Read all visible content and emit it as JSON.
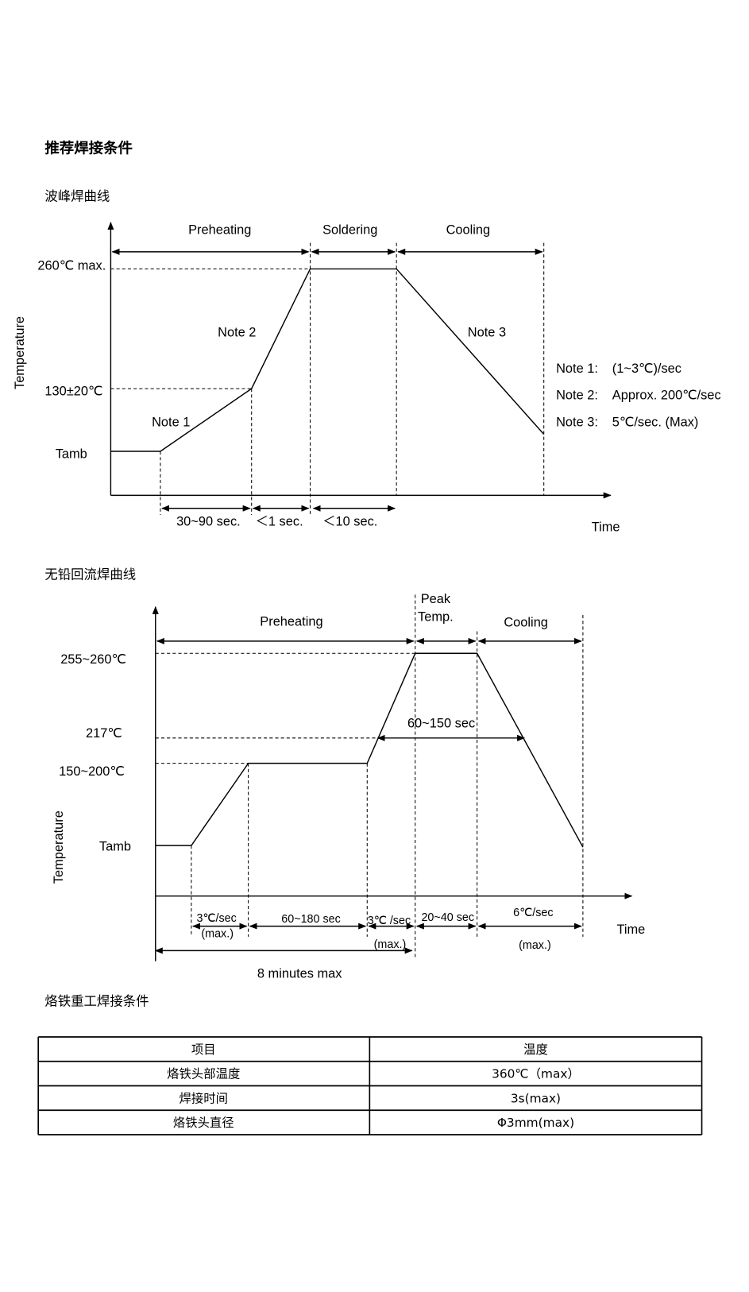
{
  "title": "推荐焊接条件",
  "wave": {
    "heading": "波峰焊曲线",
    "phases": [
      "Preheating",
      "Soldering",
      "Cooling"
    ],
    "y_labels": [
      "260℃ max.",
      "130±20℃",
      "Tamb"
    ],
    "y_axis": "Temperature",
    "x_axis": "Time",
    "curve_notes": [
      "Note 1",
      "Note 2",
      "Note 3"
    ],
    "durations": [
      "30~90 sec.",
      "＜1 sec.",
      "＜10 sec."
    ],
    "notes": [
      {
        "label": "Note 1:",
        "text": "(1~3℃)/sec"
      },
      {
        "label": "Note 2:",
        "text": "Approx. 200℃/sec"
      },
      {
        "label": "Note 3:",
        "text": "5℃/sec. (Max)"
      }
    ]
  },
  "reflow": {
    "heading": "无铅回流焊曲线",
    "phases": [
      "Preheating",
      "Cooling"
    ],
    "peak": [
      "Peak",
      "Temp."
    ],
    "y_labels": [
      "255~260℃",
      "217℃",
      "150~200℃",
      "Tamb"
    ],
    "y_axis": "Temperature",
    "x_axis": "Time",
    "above_217": "60~150 sec",
    "segments": [
      {
        "rate": "3℃/sec",
        "note": "(max.)"
      },
      {
        "rate": "60~180 sec"
      },
      {
        "rate": "3℃ /sec",
        "note": "(max.)"
      },
      {
        "rate": "20~40 sec"
      },
      {
        "rate": "6℃/sec",
        "note": "(max.)"
      }
    ],
    "total": "8 minutes max"
  },
  "iron": {
    "heading": "烙铁重工焊接条件",
    "table": {
      "header": [
        "项目",
        "温度"
      ],
      "rows": [
        [
          "烙铁头部温度",
          "360℃（max）"
        ],
        [
          "焊接时间",
          "3s(max)"
        ],
        [
          "烙铁头直径",
          "Φ3mm(max)"
        ]
      ]
    }
  }
}
